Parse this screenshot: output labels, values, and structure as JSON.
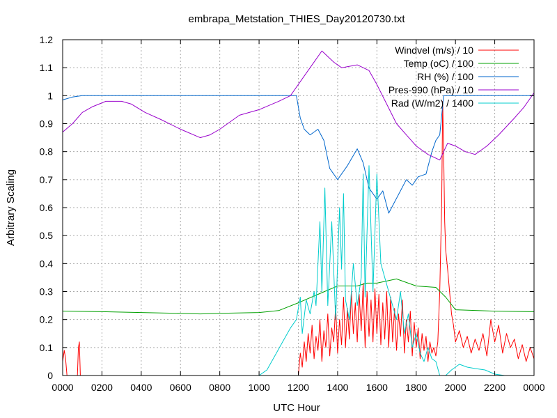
{
  "chart_data": {
    "type": "line",
    "title": "embrapa_Metstation_THIES_Day20120730.txt",
    "xlabel": "UTC Hour",
    "ylabel": "Arbitrary Scaling",
    "xlim": [
      0,
      24
    ],
    "ylim": [
      0,
      1.2
    ],
    "xticks": [
      0,
      2,
      4,
      6,
      8,
      10,
      12,
      14,
      16,
      18,
      20,
      22,
      24
    ],
    "xtick_labels": [
      "0000",
      "0200",
      "0400",
      "0600",
      "0800",
      "1000",
      "1200",
      "1400",
      "1600",
      "1800",
      "2000",
      "2200",
      "0000"
    ],
    "yticks": [
      0,
      0.1,
      0.2,
      0.3,
      0.4,
      0.5,
      0.6,
      0.7,
      0.8,
      0.9,
      1,
      1.1,
      1.2
    ],
    "ytick_labels": [
      "0",
      "0.1",
      "0.2",
      "0.3",
      "0.4",
      "0.5",
      "0.6",
      "0.7",
      "0.8",
      "0.9",
      "1",
      "1.1",
      "1.2"
    ],
    "grid": true,
    "legend_position": "top-right",
    "series": [
      {
        "name": "Windvel (m/s) / 10",
        "color": "#ff0000",
        "points": [
          [
            0,
            0.05
          ],
          [
            0.08,
            0.09
          ],
          [
            0.15,
            0.06
          ],
          [
            0.22,
            0.0
          ],
          [
            0.75,
            0.0
          ],
          [
            0.8,
            0.1
          ],
          [
            0.85,
            0.12
          ],
          [
            0.9,
            0.0
          ],
          [
            12.0,
            0.0
          ],
          [
            12.1,
            0.08
          ],
          [
            12.2,
            0.03
          ],
          [
            12.3,
            0.12
          ],
          [
            12.4,
            0.05
          ],
          [
            12.5,
            0.15
          ],
          [
            12.6,
            0.08
          ],
          [
            12.7,
            0.18
          ],
          [
            12.8,
            0.06
          ],
          [
            12.9,
            0.14
          ],
          [
            13.0,
            0.09
          ],
          [
            13.1,
            0.2
          ],
          [
            13.2,
            0.05
          ],
          [
            13.3,
            0.16
          ],
          [
            13.4,
            0.1
          ],
          [
            13.5,
            0.22
          ],
          [
            13.6,
            0.07
          ],
          [
            13.7,
            0.17
          ],
          [
            13.8,
            0.12
          ],
          [
            13.9,
            0.25
          ],
          [
            14.0,
            0.08
          ],
          [
            14.1,
            0.2
          ],
          [
            14.2,
            0.11
          ],
          [
            14.3,
            0.28
          ],
          [
            14.4,
            0.1
          ],
          [
            14.5,
            0.24
          ],
          [
            14.6,
            0.13
          ],
          [
            14.7,
            0.3
          ],
          [
            14.8,
            0.15
          ],
          [
            14.9,
            0.26
          ],
          [
            15.0,
            0.12
          ],
          [
            15.1,
            0.29
          ],
          [
            15.2,
            0.16
          ],
          [
            15.3,
            0.33
          ],
          [
            15.4,
            0.1
          ],
          [
            15.5,
            0.3
          ],
          [
            15.6,
            0.14
          ],
          [
            15.7,
            0.27
          ],
          [
            15.8,
            0.12
          ],
          [
            15.9,
            0.31
          ],
          [
            16.0,
            0.15
          ],
          [
            16.1,
            0.29
          ],
          [
            16.2,
            0.11
          ],
          [
            16.3,
            0.26
          ],
          [
            16.4,
            0.13
          ],
          [
            16.5,
            0.3
          ],
          [
            16.6,
            0.1
          ],
          [
            16.7,
            0.28
          ],
          [
            16.8,
            0.12
          ],
          [
            16.9,
            0.24
          ],
          [
            17.0,
            0.09
          ],
          [
            17.1,
            0.22
          ],
          [
            17.2,
            0.14
          ],
          [
            17.3,
            0.27
          ],
          [
            17.4,
            0.08
          ],
          [
            17.5,
            0.2
          ],
          [
            17.6,
            0.12
          ],
          [
            17.7,
            0.23
          ],
          [
            17.8,
            0.07
          ],
          [
            17.9,
            0.19
          ],
          [
            18.0,
            0.1
          ],
          [
            18.1,
            0.17
          ],
          [
            18.2,
            0.06
          ],
          [
            18.3,
            0.15
          ],
          [
            18.4,
            0.09
          ],
          [
            18.5,
            0.14
          ],
          [
            18.6,
            0.05
          ],
          [
            18.7,
            0.12
          ],
          [
            18.8,
            0.08
          ],
          [
            18.9,
            0.1
          ],
          [
            19.0,
            0.07
          ],
          [
            19.1,
            0.12
          ],
          [
            19.2,
            0.3
          ],
          [
            19.3,
            0.62
          ],
          [
            19.35,
            0.98
          ],
          [
            19.4,
            0.8
          ],
          [
            19.45,
            0.55
          ],
          [
            19.5,
            0.45
          ],
          [
            19.6,
            0.38
          ],
          [
            19.7,
            0.3
          ],
          [
            19.8,
            0.22
          ],
          [
            19.9,
            0.18
          ],
          [
            20.0,
            0.12
          ],
          [
            20.2,
            0.16
          ],
          [
            20.4,
            0.1
          ],
          [
            20.6,
            0.14
          ],
          [
            20.8,
            0.08
          ],
          [
            21.0,
            0.13
          ],
          [
            21.2,
            0.09
          ],
          [
            21.4,
            0.15
          ],
          [
            21.6,
            0.07
          ],
          [
            21.8,
            0.2
          ],
          [
            22.0,
            0.12
          ],
          [
            22.2,
            0.18
          ],
          [
            22.4,
            0.08
          ],
          [
            22.6,
            0.15
          ],
          [
            22.8,
            0.1
          ],
          [
            23.0,
            0.13
          ],
          [
            23.2,
            0.06
          ],
          [
            23.4,
            0.11
          ],
          [
            23.6,
            0.05
          ],
          [
            23.8,
            0.1
          ],
          [
            24.0,
            0.06
          ]
        ]
      },
      {
        "name": "Temp (oC) / 100",
        "color": "#00a000",
        "points": [
          [
            0,
            0.23
          ],
          [
            2,
            0.228
          ],
          [
            4,
            0.225
          ],
          [
            6,
            0.222
          ],
          [
            7,
            0.22
          ],
          [
            8,
            0.222
          ],
          [
            10,
            0.225
          ],
          [
            11,
            0.232
          ],
          [
            12,
            0.26
          ],
          [
            13,
            0.29
          ],
          [
            14,
            0.32
          ],
          [
            15,
            0.32
          ],
          [
            15.5,
            0.33
          ],
          [
            16,
            0.33
          ],
          [
            17,
            0.345
          ],
          [
            18,
            0.32
          ],
          [
            19,
            0.315
          ],
          [
            19.5,
            0.28
          ],
          [
            20,
            0.235
          ],
          [
            22,
            0.23
          ],
          [
            24,
            0.228
          ]
        ]
      },
      {
        "name": "RH (%) / 100",
        "color": "#0066cc",
        "points": [
          [
            0,
            0.985
          ],
          [
            0.5,
            0.995
          ],
          [
            1,
            1.0
          ],
          [
            11.9,
            1.0
          ],
          [
            12.1,
            0.92
          ],
          [
            12.3,
            0.88
          ],
          [
            12.6,
            0.86
          ],
          [
            13.0,
            0.88
          ],
          [
            13.3,
            0.84
          ],
          [
            13.6,
            0.74
          ],
          [
            14.0,
            0.7
          ],
          [
            14.5,
            0.75
          ],
          [
            15.0,
            0.81
          ],
          [
            15.3,
            0.76
          ],
          [
            15.6,
            0.67
          ],
          [
            16.0,
            0.63
          ],
          [
            16.3,
            0.66
          ],
          [
            16.6,
            0.58
          ],
          [
            16.9,
            0.62
          ],
          [
            17.2,
            0.66
          ],
          [
            17.5,
            0.7
          ],
          [
            17.8,
            0.68
          ],
          [
            18.1,
            0.71
          ],
          [
            18.5,
            0.72
          ],
          [
            18.8,
            0.8
          ],
          [
            19.0,
            0.84
          ],
          [
            19.2,
            0.86
          ],
          [
            19.4,
            1.0
          ],
          [
            20.0,
            1.0
          ],
          [
            24.0,
            1.0
          ]
        ]
      },
      {
        "name": "Pres-990 (hPa) / 10",
        "color": "#9900cc",
        "points": [
          [
            0,
            0.87
          ],
          [
            0.5,
            0.9
          ],
          [
            1,
            0.94
          ],
          [
            1.5,
            0.96
          ],
          [
            2.2,
            0.98
          ],
          [
            3.0,
            0.98
          ],
          [
            3.5,
            0.97
          ],
          [
            4.2,
            0.94
          ],
          [
            5.0,
            0.915
          ],
          [
            6.0,
            0.88
          ],
          [
            7.0,
            0.85
          ],
          [
            7.5,
            0.86
          ],
          [
            8.0,
            0.88
          ],
          [
            9.0,
            0.93
          ],
          [
            10.0,
            0.95
          ],
          [
            11.0,
            0.98
          ],
          [
            11.6,
            1.0
          ],
          [
            12.2,
            1.06
          ],
          [
            12.8,
            1.12
          ],
          [
            13.2,
            1.16
          ],
          [
            13.8,
            1.12
          ],
          [
            14.2,
            1.1
          ],
          [
            15.0,
            1.11
          ],
          [
            15.6,
            1.09
          ],
          [
            16.0,
            1.04
          ],
          [
            16.5,
            0.97
          ],
          [
            17.0,
            0.9
          ],
          [
            17.5,
            0.86
          ],
          [
            18.0,
            0.82
          ],
          [
            18.6,
            0.79
          ],
          [
            19.2,
            0.77
          ],
          [
            19.6,
            0.83
          ],
          [
            20.0,
            0.82
          ],
          [
            20.5,
            0.8
          ],
          [
            21.0,
            0.79
          ],
          [
            21.6,
            0.82
          ],
          [
            22.2,
            0.86
          ],
          [
            23.0,
            0.92
          ],
          [
            23.5,
            0.96
          ],
          [
            24.0,
            1.01
          ]
        ]
      },
      {
        "name": "Rad (W/m2) / 1400",
        "color": "#00cccc",
        "points": [
          [
            0,
            0
          ],
          [
            10.0,
            0
          ],
          [
            10.4,
            0.02
          ],
          [
            10.8,
            0.07
          ],
          [
            11.2,
            0.12
          ],
          [
            11.6,
            0.17
          ],
          [
            11.9,
            0.2
          ],
          [
            12.1,
            0.28
          ],
          [
            12.2,
            0.15
          ],
          [
            12.4,
            0.27
          ],
          [
            12.6,
            0.22
          ],
          [
            12.8,
            0.3
          ],
          [
            12.9,
            0.25
          ],
          [
            13.1,
            0.55
          ],
          [
            13.2,
            0.3
          ],
          [
            13.35,
            0.67
          ],
          [
            13.5,
            0.25
          ],
          [
            13.7,
            0.55
          ],
          [
            13.9,
            0.2
          ],
          [
            14.1,
            0.6
          ],
          [
            14.2,
            0.38
          ],
          [
            14.3,
            0.65
          ],
          [
            14.4,
            0.27
          ],
          [
            14.6,
            0.2
          ],
          [
            14.8,
            0.4
          ],
          [
            15.0,
            0.25
          ],
          [
            15.2,
            0.35
          ],
          [
            15.3,
            0.72
          ],
          [
            15.4,
            0.28
          ],
          [
            15.6,
            0.75
          ],
          [
            15.8,
            0.3
          ],
          [
            16.0,
            0.72
          ],
          [
            16.2,
            0.4
          ],
          [
            16.4,
            0.35
          ],
          [
            16.6,
            0.3
          ],
          [
            16.8,
            0.25
          ],
          [
            17.0,
            0.2
          ],
          [
            17.2,
            0.3
          ],
          [
            17.4,
            0.15
          ],
          [
            17.6,
            0.22
          ],
          [
            17.8,
            0.1
          ],
          [
            18.0,
            0.15
          ],
          [
            18.2,
            0.08
          ],
          [
            18.4,
            0.05
          ],
          [
            18.6,
            0.1
          ],
          [
            18.8,
            0.06
          ],
          [
            19.0,
            0.05
          ],
          [
            19.2,
            0.0
          ],
          [
            19.5,
            0.0
          ],
          [
            19.8,
            0.02
          ],
          [
            20.2,
            0.04
          ],
          [
            20.6,
            0.03
          ],
          [
            21.0,
            0.025
          ],
          [
            21.5,
            0.02
          ],
          [
            22.0,
            0.005
          ],
          [
            22.5,
            0
          ],
          [
            24.0,
            0
          ]
        ]
      }
    ]
  }
}
